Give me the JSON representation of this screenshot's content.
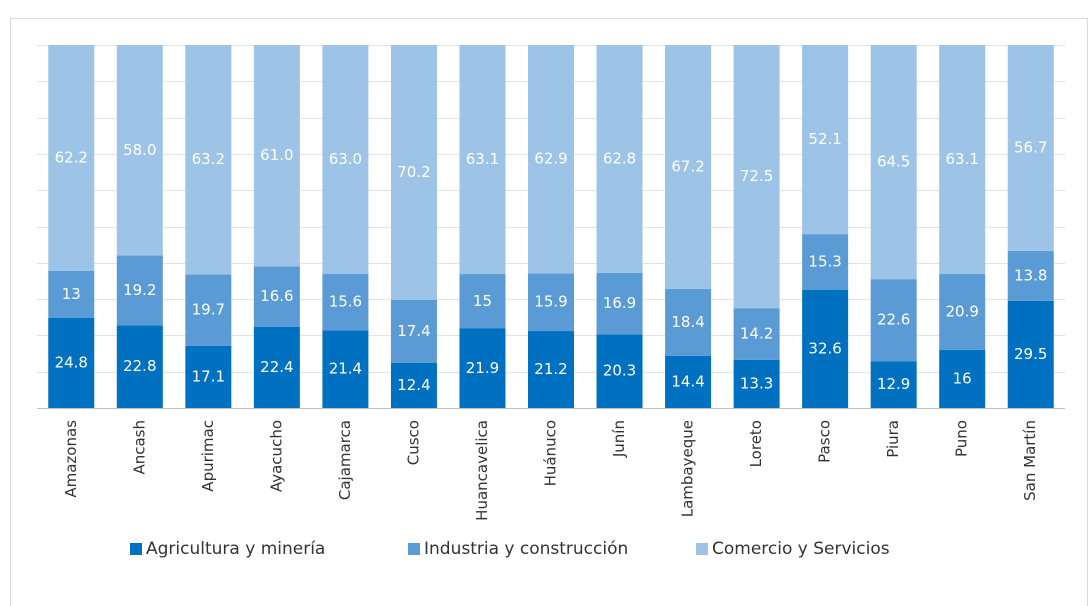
{
  "chart_data": {
    "type": "stacked_bar",
    "categories": [
      "Amazonas",
      "Ancash",
      "Apurimac",
      "Ayacucho",
      "Cajamarca",
      "Cusco",
      "Huancavelica",
      "Huánuco",
      "Junín",
      "Lambayeque",
      "Loreto",
      "Pasco",
      "Piura",
      "Puno",
      "San Martín"
    ],
    "series": [
      {
        "name": "Agricultura y minería",
        "color": "#0070c0",
        "values": [
          24.8,
          22.8,
          17.1,
          22.4,
          21.4,
          12.4,
          21.9,
          21.2,
          20.3,
          14.4,
          13.3,
          32.6,
          12.9,
          16,
          29.5
        ],
        "value_labels": [
          "24.8",
          "22.8",
          "17.1",
          "22.4",
          "21.4",
          "12.4",
          "21.9",
          "21.2",
          "20.3",
          "14.4",
          "13.3",
          "32.6",
          "12.9",
          "16",
          "29.5"
        ]
      },
      {
        "name": "Industria y construcción",
        "color": "#5b9bd5",
        "values": [
          13,
          19.2,
          19.7,
          16.6,
          15.6,
          17.4,
          15,
          15.9,
          16.9,
          18.4,
          14.2,
          15.3,
          22.6,
          20.9,
          13.8
        ],
        "value_labels": [
          "13",
          "19.2",
          "19.7",
          "16.6",
          "15.6",
          "17.4",
          "15",
          "15.9",
          "16.9",
          "18.4",
          "14.2",
          "15.3",
          "22.6",
          "20.9",
          "13.8"
        ]
      },
      {
        "name": "Comercio y Servicios",
        "color": "#9dc3e6",
        "values": [
          62.2,
          58.0,
          63.2,
          61.0,
          63.0,
          70.2,
          63.1,
          62.9,
          62.8,
          67.2,
          72.5,
          52.1,
          64.5,
          63.1,
          56.7
        ],
        "value_labels": [
          "62.2",
          "58.0",
          "63.2",
          "61.0",
          "63.0",
          "70.2",
          "63.1",
          "62.9",
          "62.8",
          "67.2",
          "72.5",
          "52.1",
          "64.5",
          "63.1",
          "56.7"
        ]
      }
    ],
    "ylim": [
      0,
      100
    ],
    "yticks": [
      0,
      10,
      20,
      30,
      40,
      50,
      60,
      70,
      80,
      90,
      100
    ],
    "grid": true,
    "legend": "bottom"
  }
}
